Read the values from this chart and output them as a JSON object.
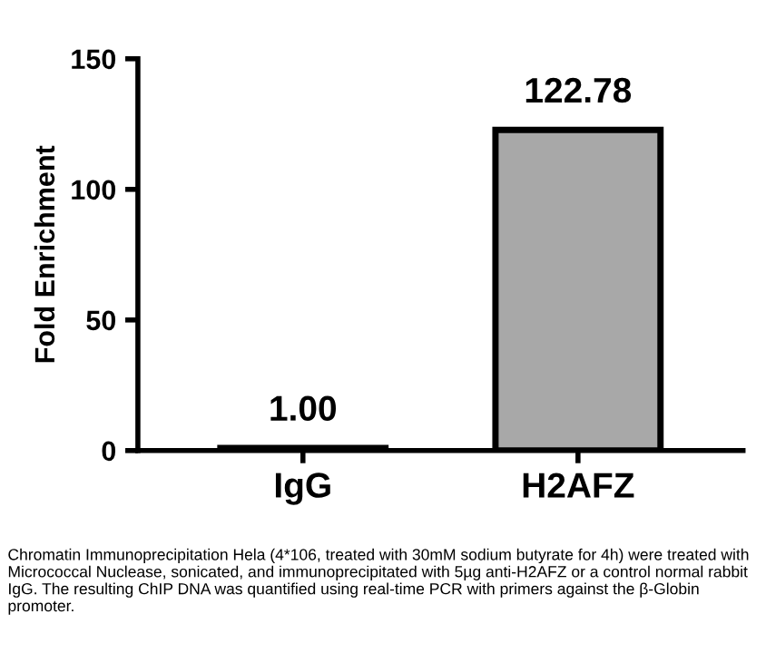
{
  "chart_data": {
    "type": "bar",
    "ylabel": "Fold Enrichment",
    "categories": [
      "IgG",
      "H2AFZ"
    ],
    "values": [
      1.0,
      122.78
    ],
    "value_labels": [
      "1.00",
      "122.78"
    ],
    "colors": [
      "#000000",
      "#a8a8a8"
    ],
    "ylim": [
      0,
      150
    ],
    "yticks": [
      0,
      50,
      100,
      150
    ],
    "grid": false,
    "annotations": [
      "Chromatin Immunoprecipitation Hela (4*106, treated with 30mM sodium butyrate for 4h) were treated with Micrococcal Nuclease, sonicated, and immunoprecipitated with 5µg anti-H2AFZ or a control normal rabbit IgG. The resulting ChIP DNA was quantified using real-time PCR with primers against the β-Globin promoter."
    ]
  }
}
